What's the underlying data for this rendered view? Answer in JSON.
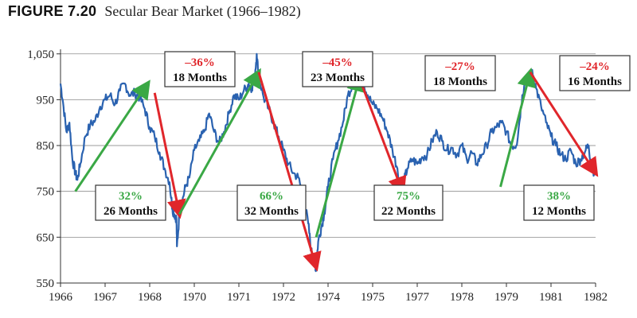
{
  "figure": {
    "label": "FIGURE 7.20",
    "caption": "Secular Bear Market (1966–1982)"
  },
  "colors": {
    "price_line": "#2a62b0",
    "up_arrow": "#3aa845",
    "down_arrow": "#e0262b",
    "up_text": "#3aa845",
    "down_text": "#e0262b",
    "grid": "#8c8c8c",
    "box_border": "#333333"
  },
  "chart_data": {
    "type": "line",
    "title": "",
    "xlabel": "",
    "ylabel": "",
    "ylim": [
      550,
      1060
    ],
    "x_tick_labels": [
      "1966",
      "1967",
      "1968",
      "1970",
      "1971",
      "1972",
      "1974",
      "1975",
      "1977",
      "1978",
      "1979",
      "1981",
      "1982"
    ],
    "y_tick_values": [
      550,
      650,
      750,
      850,
      950,
      1050
    ],
    "y_tick_labels": [
      "550",
      "650",
      "750",
      "850",
      "950",
      "1,050"
    ],
    "grid": "horizontal",
    "series": [
      {
        "values": [
          [
            0.0,
            985
          ],
          [
            0.25,
            945
          ],
          [
            0.6,
            880
          ],
          [
            0.9,
            900
          ],
          [
            1.2,
            820
          ],
          [
            1.5,
            790
          ],
          [
            1.7,
            775
          ],
          [
            2.0,
            810
          ],
          [
            2.5,
            870
          ],
          [
            3.0,
            895
          ],
          [
            3.5,
            905
          ],
          [
            4.0,
            935
          ],
          [
            4.5,
            950
          ],
          [
            5.0,
            960
          ],
          [
            5.5,
            940
          ],
          [
            6.0,
            970
          ],
          [
            6.5,
            985
          ],
          [
            7.0,
            960
          ],
          [
            7.5,
            965
          ],
          [
            8.0,
            955
          ],
          [
            8.5,
            930
          ],
          [
            9.0,
            890
          ],
          [
            9.5,
            870
          ],
          [
            10.0,
            835
          ],
          [
            10.5,
            800
          ],
          [
            11.0,
            770
          ],
          [
            11.3,
            710
          ],
          [
            11.5,
            700
          ],
          [
            11.7,
            690
          ],
          [
            11.75,
            630
          ],
          [
            12.0,
            700
          ],
          [
            12.3,
            730
          ],
          [
            12.6,
            760
          ],
          [
            13.0,
            780
          ],
          [
            13.5,
            840
          ],
          [
            14.0,
            860
          ],
          [
            14.5,
            880
          ],
          [
            15.0,
            920
          ],
          [
            15.5,
            880
          ],
          [
            16.0,
            855
          ],
          [
            16.5,
            880
          ],
          [
            17.0,
            920
          ],
          [
            17.5,
            960
          ],
          [
            18.0,
            950
          ],
          [
            18.5,
            970
          ],
          [
            19.0,
            985
          ],
          [
            19.3,
            975
          ],
          [
            19.6,
            1000
          ],
          [
            19.8,
            1050
          ],
          [
            20.0,
            1000
          ],
          [
            20.5,
            955
          ],
          [
            21.0,
            930
          ],
          [
            21.5,
            900
          ],
          [
            22.0,
            870
          ],
          [
            22.5,
            840
          ],
          [
            23.0,
            810
          ],
          [
            23.5,
            790
          ],
          [
            24.0,
            780
          ],
          [
            24.5,
            740
          ],
          [
            25.0,
            680
          ],
          [
            25.3,
            620
          ],
          [
            25.5,
            605
          ],
          [
            25.7,
            590
          ],
          [
            25.8,
            580
          ],
          [
            26.0,
            640
          ],
          [
            26.3,
            670
          ],
          [
            26.6,
            700
          ],
          [
            27.0,
            760
          ],
          [
            27.5,
            820
          ],
          [
            28.0,
            860
          ],
          [
            28.5,
            900
          ],
          [
            29.0,
            960
          ],
          [
            29.5,
            985
          ],
          [
            30.0,
            1005
          ],
          [
            30.5,
            990
          ],
          [
            31.0,
            960
          ],
          [
            31.5,
            940
          ],
          [
            32.0,
            930
          ],
          [
            32.5,
            910
          ],
          [
            33.0,
            880
          ],
          [
            33.5,
            840
          ],
          [
            34.0,
            800
          ],
          [
            34.3,
            760
          ],
          [
            34.5,
            745
          ],
          [
            34.7,
            775
          ],
          [
            35.0,
            800
          ],
          [
            35.5,
            820
          ],
          [
            36.0,
            810
          ],
          [
            36.5,
            825
          ],
          [
            37.0,
            830
          ],
          [
            37.5,
            860
          ],
          [
            38.0,
            880
          ],
          [
            38.5,
            860
          ],
          [
            39.0,
            840
          ],
          [
            39.5,
            845
          ],
          [
            40.0,
            830
          ],
          [
            40.5,
            850
          ],
          [
            41.0,
            820
          ],
          [
            41.5,
            835
          ],
          [
            42.0,
            810
          ],
          [
            42.5,
            830
          ],
          [
            43.0,
            850
          ],
          [
            43.5,
            880
          ],
          [
            44.0,
            890
          ],
          [
            44.5,
            900
          ],
          [
            45.0,
            880
          ],
          [
            45.5,
            850
          ],
          [
            46.0,
            850
          ],
          [
            46.3,
            900
          ],
          [
            46.6,
            960
          ],
          [
            47.0,
            1000
          ],
          [
            47.3,
            990
          ],
          [
            47.6,
            1015
          ],
          [
            48.0,
            975
          ],
          [
            48.5,
            935
          ],
          [
            49.0,
            900
          ],
          [
            49.5,
            870
          ],
          [
            50.0,
            850
          ],
          [
            50.5,
            830
          ],
          [
            51.0,
            820
          ],
          [
            51.5,
            840
          ],
          [
            52.0,
            810
          ],
          [
            52.5,
            820
          ],
          [
            53.0,
            840
          ],
          [
            53.3,
            850
          ],
          [
            53.6,
            800
          ],
          [
            54.0,
            790
          ]
        ]
      }
    ],
    "moves": [
      {
        "direction": "up",
        "from": [
          1.5,
          750
        ],
        "to": [
          8.8,
          985
        ],
        "pct": "32%",
        "duration": "26 Months"
      },
      {
        "direction": "down",
        "from": [
          9.5,
          965
        ],
        "to": [
          12.0,
          700
        ],
        "pct": "–36%",
        "duration": "18 Months"
      },
      {
        "direction": "up",
        "from": [
          12.0,
          700
        ],
        "to": [
          20.0,
          1010
        ],
        "pct": "66%",
        "duration": "32 Months"
      },
      {
        "direction": "down",
        "from": [
          20.0,
          1010
        ],
        "to": [
          25.8,
          585
        ],
        "pct": "–45%",
        "duration": "23 Months"
      },
      {
        "direction": "up",
        "from": [
          25.8,
          650
        ],
        "to": [
          30.2,
          1000
        ],
        "pct": "75%",
        "duration": "22 Months"
      },
      {
        "direction": "down",
        "from": [
          30.2,
          995
        ],
        "to": [
          34.5,
          750
        ],
        "pct": "–27%",
        "duration": "18 Months"
      },
      {
        "direction": "up",
        "from": [
          44.4,
          760
        ],
        "to": [
          47.4,
          1010
        ],
        "pct": "38%",
        "duration": "12 Months"
      },
      {
        "direction": "down",
        "from": [
          47.4,
          1010
        ],
        "to": [
          54.0,
          790
        ],
        "pct": "–24%",
        "duration": "16 Months"
      }
    ]
  }
}
